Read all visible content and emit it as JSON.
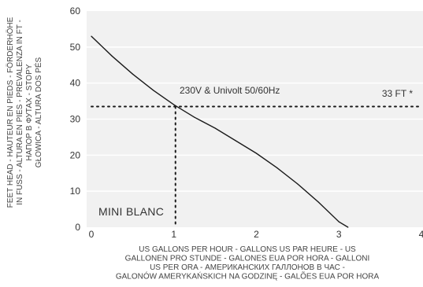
{
  "chart_data": {
    "type": "line",
    "x": [
      0,
      0.25,
      0.5,
      0.75,
      1.0,
      1.25,
      1.5,
      1.75,
      2.0,
      2.25,
      2.5,
      2.75,
      3.0,
      3.11
    ],
    "series": [
      {
        "values": [
          53,
          47.5,
          42.5,
          38,
          34,
          30.5,
          27.5,
          24,
          20.5,
          16.5,
          12,
          7,
          1.5,
          0
        ]
      }
    ],
    "xlim": [
      0,
      4
    ],
    "ylim": [
      0,
      60
    ],
    "xticks": [
      "0",
      "1",
      "2",
      "3",
      "4"
    ],
    "yticks": [
      "0",
      "10",
      "20",
      "30",
      "40",
      "50",
      "60"
    ],
    "reference_line": {
      "y": 33.5,
      "label": "33 FT *"
    },
    "operating_point": {
      "x": 1.0,
      "y": 33.5
    },
    "curve_label": "230V & Univolt 50/60Hz",
    "model_label": "MINI BLANC",
    "xlabel": [
      "US GALLONS PER HOUR - GALLONS US PAR HEURE - US",
      "GALLONEN PRO STUNDE - GALONES EUA POR HORA - GALLONI",
      "US PER ORA - АМЕРИКАНСКИХ ГАЛЛОНОВ В ЧАС -",
      "GALONÓW AMERYKAŃSKICH NA GODZINĘ - GALÕES EUA POR HORA"
    ],
    "ylabel": [
      "FEET HEAD - HAUTEUR EN PIEDS - FÖRDERHÖHE",
      "IN FUSS - ALTURA EN PIES - PREVALENZA IN FT -",
      "НАПОР В ФУТАХ - STOPY",
      "GŁOWICA - ALTURA DOS PÉS"
    ],
    "grid": "horizontal",
    "colors": {
      "plot_bg": "#f1f1f1",
      "grid": "#ffffff",
      "curve": "#1a1a1a",
      "dots": "#1a1a1a"
    }
  }
}
